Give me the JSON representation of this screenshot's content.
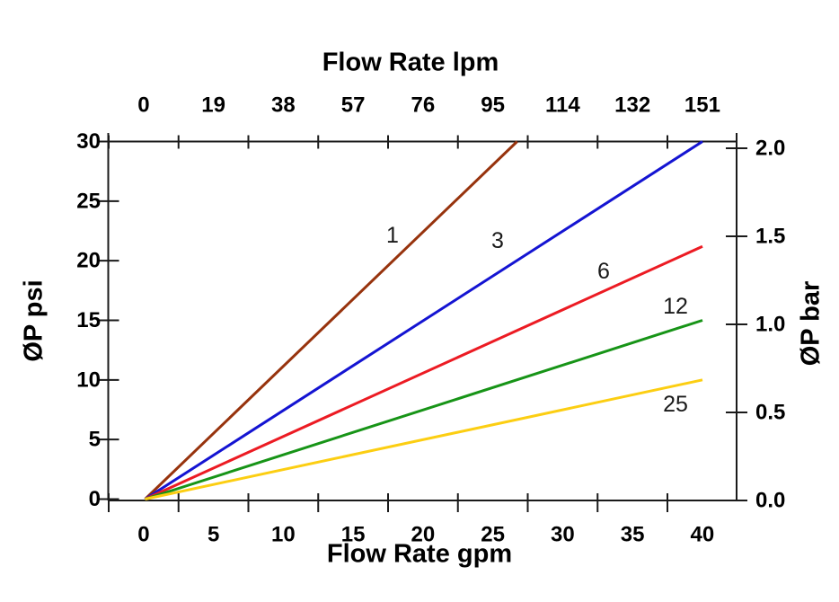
{
  "figure": {
    "background": "#ffffff",
    "axis_color": "#1a1a1a",
    "text_color": "#000000",
    "top_axis": {
      "title": "Flow Rate lpm",
      "unit": "lpm",
      "tick_labels": [
        "0",
        "19",
        "38",
        "57",
        "76",
        "95",
        "114",
        "132",
        "151"
      ]
    },
    "bottom_axis": {
      "title": "Flow Rate gpm",
      "unit": "gpm",
      "tick_labels": [
        "0",
        "5",
        "10",
        "15",
        "20",
        "25",
        "30",
        "35",
        "40"
      ]
    },
    "left_axis": {
      "title": "ØP psi",
      "unit": "psi",
      "tick_labels": [
        "30",
        "25",
        "20",
        "15",
        "10",
        "5",
        "0"
      ]
    },
    "right_axis": {
      "title": "ØP bar",
      "unit": "bar",
      "tick_labels": [
        "2.0",
        "1.5",
        "1.0",
        "0.5",
        "0.0"
      ]
    }
  },
  "chart_data": {
    "type": "line",
    "title": "",
    "xlabel_top": "Flow Rate lpm",
    "xlabel_bottom": "Flow Rate gpm",
    "ylabel_left": "ØP psi",
    "ylabel_right": "ØP bar",
    "xlim_gpm": [
      0,
      40
    ],
    "xlim_lpm": [
      0,
      151
    ],
    "ylim_psi": [
      0,
      30
    ],
    "ylim_bar": [
      0,
      2.0
    ],
    "grid": false,
    "legend_position": "inline labels beside each curve",
    "series": [
      {
        "label": "1",
        "color": "#97330D",
        "points_gpm_psi": [
          [
            0,
            0
          ],
          [
            26.7,
            30
          ]
        ],
        "slope_psi_per_gpm": 1.125
      },
      {
        "label": "3",
        "color": "#1414D2",
        "points_gpm_psi": [
          [
            0,
            0
          ],
          [
            40,
            30
          ]
        ],
        "slope_psi_per_gpm": 0.75
      },
      {
        "label": "6",
        "color": "#EC1B23",
        "points_gpm_psi": [
          [
            0,
            0
          ],
          [
            40,
            21.2
          ]
        ],
        "slope_psi_per_gpm": 0.53
      },
      {
        "label": "12",
        "color": "#179417",
        "points_gpm_psi": [
          [
            0,
            0
          ],
          [
            40,
            15
          ]
        ],
        "slope_psi_per_gpm": 0.375
      },
      {
        "label": "25",
        "color": "#FCCE12",
        "points_gpm_psi": [
          [
            0,
            0
          ],
          [
            40,
            10
          ]
        ],
        "slope_psi_per_gpm": 0.25
      }
    ]
  }
}
